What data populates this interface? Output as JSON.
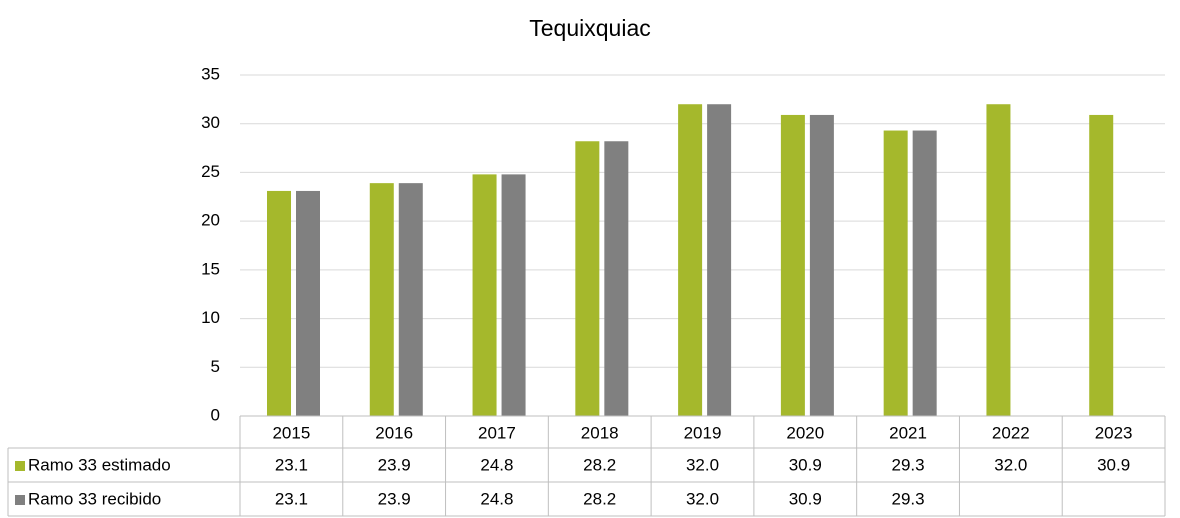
{
  "chart_data": {
    "type": "bar",
    "title": "Tequixquiac",
    "categories": [
      "2015",
      "2016",
      "2017",
      "2018",
      "2019",
      "2020",
      "2021",
      "2022",
      "2023"
    ],
    "series": [
      {
        "name": "Ramo 33 estimado",
        "color": "#a5b82c",
        "values": [
          23.1,
          23.9,
          24.8,
          28.2,
          32.0,
          30.9,
          29.3,
          32.0,
          30.9
        ],
        "value_labels": [
          "23.1",
          "23.9",
          "24.8",
          "28.2",
          "32.0",
          "30.9",
          "29.3",
          "32.0",
          "30.9"
        ]
      },
      {
        "name": "Ramo 33 recibido",
        "color": "#808080",
        "values": [
          23.1,
          23.9,
          24.8,
          28.2,
          32.0,
          30.9,
          29.3,
          null,
          null
        ],
        "value_labels": [
          "23.1",
          "23.9",
          "24.8",
          "28.2",
          "32.0",
          "30.9",
          "29.3",
          null,
          null
        ]
      }
    ],
    "ylim": [
      0,
      35
    ],
    "yticks": [
      0,
      5,
      10,
      15,
      20,
      25,
      30,
      35
    ],
    "grid": true,
    "data_table": true
  }
}
